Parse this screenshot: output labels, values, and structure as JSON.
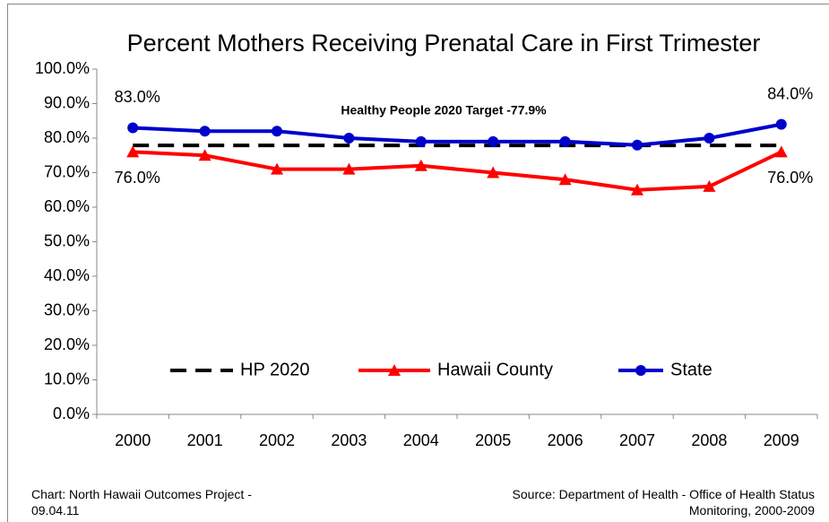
{
  "chart_data": {
    "type": "line",
    "title": "Percent Mothers Receiving Prenatal Care in First Trimester",
    "annotation": "Healthy People 2020 Target -77.9%",
    "categories": [
      "2000",
      "2001",
      "2002",
      "2003",
      "2004",
      "2005",
      "2006",
      "2007",
      "2008",
      "2009"
    ],
    "series": [
      {
        "name": "HP 2020",
        "color": "#000000",
        "dash": true,
        "marker": "none",
        "values": [
          77.9,
          77.9,
          77.9,
          77.9,
          77.9,
          77.9,
          77.9,
          77.9,
          77.9,
          77.9
        ]
      },
      {
        "name": "Hawaii County",
        "color": "#ff0000",
        "marker": "triangle",
        "values": [
          76,
          75,
          71,
          71,
          72,
          70,
          68,
          65,
          66,
          76
        ],
        "value_labels": [
          "76.0%",
          null,
          null,
          null,
          null,
          null,
          null,
          null,
          null,
          "76.0%"
        ]
      },
      {
        "name": "State",
        "color": "#0000cc",
        "marker": "circle",
        "values": [
          83,
          82,
          82,
          80,
          79,
          79,
          79,
          78,
          80,
          84
        ],
        "value_labels": [
          "83.0%",
          null,
          null,
          null,
          null,
          null,
          null,
          null,
          null,
          "84.0%"
        ]
      }
    ],
    "ylim": [
      0,
      100
    ],
    "yticks": [
      {
        "value": 0,
        "label": "0.0%"
      },
      {
        "value": 10,
        "label": "10.0%"
      },
      {
        "value": 20,
        "label": "20.0%"
      },
      {
        "value": 30,
        "label": "30.0%"
      },
      {
        "value": 40,
        "label": "40.0%"
      },
      {
        "value": 50,
        "label": "50.0%"
      },
      {
        "value": 60,
        "label": "60.0%"
      },
      {
        "value": 70,
        "label": "70.0%"
      },
      {
        "value": 80,
        "label": "80.0%"
      },
      {
        "value": 90,
        "label": "90.0%"
      },
      {
        "value": 100,
        "label": "100.0%"
      }
    ],
    "grid": false,
    "legend": "bottom",
    "footer_left": "Chart:  North Hawaii Outcomes Project - 09.04.11",
    "footer_right": "Source:  Department of Health - Office of Health Status Monitoring, 2000-2009"
  }
}
